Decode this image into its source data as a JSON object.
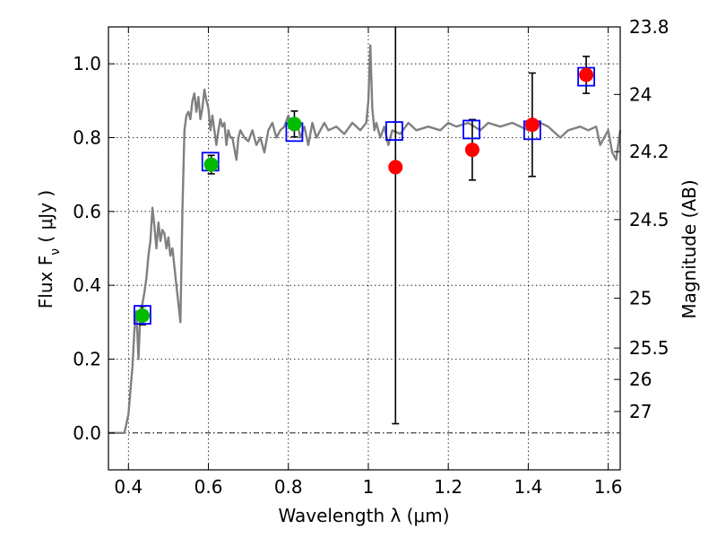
{
  "chart_data": {
    "type": "scatter",
    "xlabel": "Wavelength  λ (μm)",
    "ylabel": "Flux  F",
    "ylabel_sub": "ν",
    "ylabel_units": "  ( μJy )",
    "y2label": "Magnitude (AB)",
    "xlim": [
      0.35,
      1.63
    ],
    "ylim": [
      -0.1,
      1.1
    ],
    "grid": true,
    "x_ticks": [
      0.4,
      0.6,
      0.8,
      1.0,
      1.2,
      1.4,
      1.6
    ],
    "x_tick_labels": [
      "0.4",
      "0.6",
      "0.8",
      "1",
      "1.2",
      "1.4",
      "1.6"
    ],
    "y_ticks": [
      0.0,
      0.2,
      0.4,
      0.6,
      0.8,
      1.0
    ],
    "y_tick_labels": [
      "0.0",
      "0.2",
      "0.4",
      "0.6",
      "0.8",
      "1.0"
    ],
    "y2_ticks": [
      {
        "label": "23.8",
        "flux": 1.1
      },
      {
        "label": "24",
        "flux": 0.917
      },
      {
        "label": "24.2",
        "flux": 0.762
      },
      {
        "label": "24.5",
        "flux": 0.578
      },
      {
        "label": "25",
        "flux": 0.365
      },
      {
        "label": "25.5",
        "flux": 0.23
      },
      {
        "label": "26",
        "flux": 0.145
      },
      {
        "label": "27",
        "flux": 0.058
      }
    ],
    "series": [
      {
        "name": "model spectrum",
        "type": "line",
        "color": "#808080",
        "x": [
          0.35,
          0.39,
          0.4,
          0.41,
          0.415,
          0.42,
          0.425,
          0.43,
          0.435,
          0.44,
          0.445,
          0.45,
          0.455,
          0.46,
          0.465,
          0.47,
          0.475,
          0.48,
          0.485,
          0.49,
          0.495,
          0.5,
          0.505,
          0.51,
          0.515,
          0.52,
          0.525,
          0.53,
          0.535,
          0.54,
          0.545,
          0.55,
          0.555,
          0.56,
          0.565,
          0.57,
          0.575,
          0.58,
          0.585,
          0.59,
          0.595,
          0.6,
          0.605,
          0.61,
          0.615,
          0.62,
          0.625,
          0.63,
          0.635,
          0.64,
          0.645,
          0.65,
          0.655,
          0.66,
          0.665,
          0.67,
          0.675,
          0.68,
          0.69,
          0.7,
          0.71,
          0.72,
          0.73,
          0.74,
          0.75,
          0.76,
          0.77,
          0.78,
          0.79,
          0.8,
          0.81,
          0.82,
          0.83,
          0.84,
          0.85,
          0.86,
          0.87,
          0.88,
          0.89,
          0.9,
          0.92,
          0.94,
          0.96,
          0.98,
          0.995,
          1.0,
          1.005,
          1.01,
          1.015,
          1.02,
          1.03,
          1.04,
          1.05,
          1.06,
          1.08,
          1.1,
          1.12,
          1.15,
          1.18,
          1.2,
          1.22,
          1.25,
          1.28,
          1.3,
          1.33,
          1.36,
          1.4,
          1.43,
          1.45,
          1.48,
          1.5,
          1.53,
          1.55,
          1.57,
          1.58,
          1.59,
          1.6,
          1.61,
          1.62,
          1.63
        ],
        "y": [
          0.0,
          0.0,
          0.05,
          0.18,
          0.28,
          0.33,
          0.2,
          0.33,
          0.35,
          0.38,
          0.42,
          0.48,
          0.52,
          0.61,
          0.56,
          0.5,
          0.57,
          0.52,
          0.55,
          0.54,
          0.5,
          0.53,
          0.48,
          0.5,
          0.45,
          0.4,
          0.35,
          0.3,
          0.6,
          0.82,
          0.86,
          0.87,
          0.85,
          0.9,
          0.92,
          0.87,
          0.91,
          0.85,
          0.88,
          0.93,
          0.9,
          0.88,
          0.82,
          0.86,
          0.82,
          0.78,
          0.82,
          0.85,
          0.83,
          0.84,
          0.78,
          0.82,
          0.8,
          0.8,
          0.77,
          0.74,
          0.8,
          0.82,
          0.8,
          0.79,
          0.82,
          0.78,
          0.8,
          0.76,
          0.82,
          0.84,
          0.8,
          0.82,
          0.83,
          0.86,
          0.82,
          0.85,
          0.8,
          0.83,
          0.78,
          0.84,
          0.8,
          0.82,
          0.84,
          0.82,
          0.83,
          0.81,
          0.84,
          0.82,
          0.84,
          0.9,
          1.05,
          0.88,
          0.82,
          0.84,
          0.8,
          0.83,
          0.78,
          0.82,
          0.81,
          0.84,
          0.82,
          0.83,
          0.82,
          0.84,
          0.83,
          0.84,
          0.82,
          0.84,
          0.83,
          0.84,
          0.82,
          0.84,
          0.83,
          0.8,
          0.82,
          0.83,
          0.82,
          0.83,
          0.78,
          0.8,
          0.82,
          0.76,
          0.74,
          0.82
        ]
      },
      {
        "name": "model photometry",
        "type": "scatter",
        "marker": "open-square",
        "color": "#0000ff",
        "x": [
          0.435,
          0.605,
          0.815,
          1.065,
          1.258,
          1.41,
          1.545
        ],
        "y": [
          0.32,
          0.735,
          0.815,
          0.818,
          0.822,
          0.82,
          0.965
        ]
      },
      {
        "name": "observed (green)",
        "type": "scatter",
        "marker": "circle",
        "color": "#00bb00",
        "x": [
          0.435,
          0.607,
          0.815
        ],
        "y": [
          0.318,
          0.727,
          0.837
        ],
        "yerr": [
          0.025,
          0.025,
          0.035
        ]
      },
      {
        "name": "observed (red)",
        "type": "scatter",
        "marker": "circle",
        "color": "#ff0000",
        "x": [
          1.068,
          1.26,
          1.41,
          1.545
        ],
        "y": [
          0.72,
          0.767,
          0.835,
          0.97
        ],
        "yerr_low": [
          0.695,
          0.082,
          0.14,
          0.05
        ],
        "yerr_high": [
          0.4,
          0.082,
          0.14,
          0.05
        ]
      }
    ]
  }
}
